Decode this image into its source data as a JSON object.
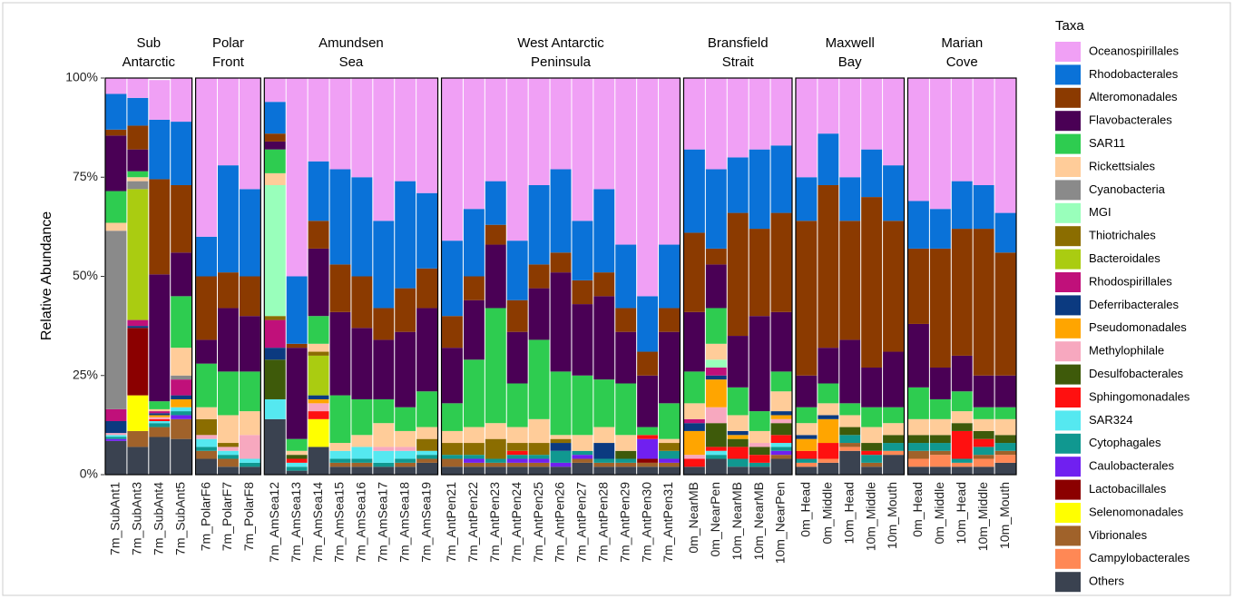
{
  "chart_data": {
    "type": "stacked-bar",
    "ylabel": "Relative Abundance",
    "ylim": [
      0,
      100
    ],
    "yticks": [
      {
        "value": 0,
        "label": "0%"
      },
      {
        "value": 25,
        "label": "25%"
      },
      {
        "value": 50,
        "label": "50%"
      },
      {
        "value": 75,
        "label": "75%"
      },
      {
        "value": 100,
        "label": "100%"
      }
    ],
    "legend_title": "Taxa",
    "groups": [
      {
        "label": [
          "Sub",
          "Antarctic"
        ],
        "categories": [
          "7m_SubAnt1",
          "7m_SubAnt3",
          "7m_SubAnt4",
          "7m_SubAnt5"
        ]
      },
      {
        "label": [
          "Polar",
          "Front"
        ],
        "categories": [
          "7m_PolarF6",
          "7m_PolarF7",
          "7m_PolarF8"
        ]
      },
      {
        "label": [
          "Amundsen",
          "Sea"
        ],
        "categories": [
          "7m_AmSea12",
          "7m_AmSea13",
          "7m_AmSea14",
          "7m_AmSea15",
          "7m_AmSea16",
          "7m_AmSea17",
          "7m_AmSea18",
          "7m_AmSea19"
        ]
      },
      {
        "label": [
          "West Antarctic",
          "Peninsula"
        ],
        "categories": [
          "7m_AntPen21",
          "7m_AntPen22",
          "7m_AntPen23",
          "7m_AntPen24",
          "7m_AntPen25",
          "7m_AntPen26",
          "7m_AntPen27",
          "7m_AntPen28",
          "7m_AntPen29",
          "7m_AntPen30",
          "7m_AntPen31"
        ]
      },
      {
        "label": [
          "Bransfield",
          "Strait"
        ],
        "categories": [
          "0m_NearMB",
          "0m_NearPen",
          "10m_NearMB",
          "10m_NearMB",
          "10m_NearPen"
        ]
      },
      {
        "label": [
          "Maxwell",
          "Bay"
        ],
        "categories": [
          "0m_Head",
          "0m_Middle",
          "10m_Head",
          "10m_Middle",
          "10m_Mouth"
        ]
      },
      {
        "label": [
          "Marian",
          "Cove"
        ],
        "categories": [
          "0m_Head",
          "0m_Middle",
          "10m_Head",
          "10m_Middle",
          "10m_Mouth"
        ]
      }
    ],
    "series": [
      {
        "name": "Oceanospirillales",
        "color": "#f0a0f5",
        "values": [
          4,
          5,
          10,
          11,
          40,
          22,
          28,
          6,
          50,
          21,
          23,
          25,
          36,
          26,
          29,
          41,
          33,
          26,
          41,
          27,
          23,
          36,
          28,
          42,
          55,
          42,
          18,
          23,
          20,
          18,
          17,
          25,
          14,
          25,
          18,
          22,
          31,
          33,
          26,
          27,
          34
        ]
      },
      {
        "name": "Rhodobacterales",
        "color": "#0a72d8",
        "values": [
          9,
          7,
          15,
          16,
          10,
          27,
          22,
          8,
          17,
          15,
          24,
          25,
          22,
          27,
          19,
          19,
          17,
          11,
          15,
          20,
          21,
          15,
          21,
          16,
          14,
          16,
          21,
          20,
          14,
          20,
          17,
          11,
          13,
          11,
          12,
          14,
          12,
          10,
          12,
          11,
          10
        ]
      },
      {
        "name": "Alteromonadales",
        "color": "#8b3a00",
        "values": [
          1.5,
          6,
          24,
          17,
          16,
          9,
          10,
          2,
          1,
          7,
          12,
          13,
          8,
          11,
          10,
          8,
          6,
          5,
          8,
          6,
          5,
          6,
          6,
          6,
          6,
          6,
          20,
          4,
          31,
          22,
          25,
          39,
          41,
          30,
          43,
          33,
          19,
          30,
          32,
          37,
          31
        ]
      },
      {
        "name": "Flavobacterales",
        "color": "#4a0055",
        "values": [
          14,
          5.5,
          32,
          11,
          6,
          16,
          14,
          2,
          23,
          17,
          21,
          18,
          15,
          19,
          21,
          14,
          15,
          16,
          13,
          13,
          25,
          18,
          21,
          13,
          13,
          18,
          15,
          11,
          13,
          24,
          15,
          8,
          9,
          16,
          10,
          14,
          16,
          8,
          9,
          8,
          8
        ]
      },
      {
        "name": "SAR11",
        "color": "#2ecc50",
        "values": [
          8,
          1.5,
          2,
          13,
          11,
          11,
          10,
          6,
          3,
          7,
          12,
          9,
          6,
          6,
          9,
          7,
          17,
          29,
          11,
          20,
          16,
          15,
          12,
          13,
          2,
          9,
          8,
          9,
          7,
          5,
          5,
          4,
          5,
          3,
          5,
          4,
          8,
          5,
          5,
          3,
          3
        ]
      },
      {
        "name": "Rickettsiales",
        "color": "#ffcc99",
        "values": [
          2,
          1,
          0.5,
          7,
          3,
          7,
          6,
          3,
          1,
          2,
          2,
          3,
          6,
          4,
          3,
          3,
          4,
          4,
          4,
          6,
          1,
          4,
          4,
          4,
          0,
          1,
          4,
          4,
          4,
          3,
          5,
          3,
          3,
          3,
          4,
          3,
          4,
          4,
          3,
          3,
          4
        ]
      },
      {
        "name": "Cyanobacteria",
        "color": "#8a8a8a",
        "values": [
          45,
          2,
          0,
          1,
          0,
          0,
          0,
          0,
          0,
          0,
          0,
          0,
          0,
          0,
          0,
          0,
          0,
          0,
          0,
          0,
          0,
          0,
          0,
          0,
          0,
          0,
          0,
          0,
          0,
          0,
          0,
          0,
          0,
          0,
          0,
          0,
          0,
          0,
          0,
          0,
          0
        ]
      },
      {
        "name": "MGI",
        "color": "#99ffbb",
        "values": [
          0,
          0,
          0,
          0,
          0,
          0,
          0,
          33,
          0,
          0,
          0,
          0,
          0,
          0,
          0,
          0,
          0,
          0,
          0,
          0,
          0,
          0,
          0,
          0,
          0,
          0,
          0,
          2,
          0,
          0,
          0,
          0,
          0,
          0,
          0,
          0,
          0,
          0,
          0,
          0,
          0
        ]
      },
      {
        "name": "Thiotrichales",
        "color": "#8b6d00",
        "values": [
          0,
          0,
          0,
          0,
          4,
          1,
          0,
          1,
          0,
          1,
          0,
          0,
          0,
          0,
          3,
          3,
          3,
          5,
          2,
          3,
          1,
          0,
          0,
          0,
          0,
          2,
          0,
          0,
          0,
          0,
          0,
          0,
          0,
          0,
          0,
          0,
          0,
          0,
          0,
          0,
          0
        ]
      },
      {
        "name": "Bacteroidales",
        "color": "#aacc11",
        "values": [
          0,
          33,
          0,
          0,
          0,
          0,
          0,
          0,
          0,
          10,
          0,
          0,
          0,
          0,
          0,
          0,
          0,
          0,
          0,
          0,
          0,
          0,
          0,
          0,
          0,
          0,
          0,
          0,
          0,
          0,
          0,
          0,
          0,
          0,
          0,
          0,
          0,
          0,
          0,
          0,
          0
        ]
      },
      {
        "name": "Rhodospirillales",
        "color": "#c0107a",
        "values": [
          3,
          1.5,
          0.5,
          4,
          0,
          0,
          0,
          7,
          0,
          0,
          0,
          0,
          0,
          0,
          0,
          0,
          0,
          0,
          0,
          0,
          0,
          0,
          0,
          0,
          0,
          0,
          1,
          2,
          0,
          0,
          0,
          0,
          0,
          0,
          0,
          0,
          0,
          0,
          0,
          0,
          0
        ]
      },
      {
        "name": "Deferribacterales",
        "color": "#0b3a80",
        "values": [
          3,
          0.5,
          0.5,
          1,
          0,
          0,
          0,
          3,
          0,
          1,
          0,
          0,
          0,
          0,
          0,
          0,
          0,
          0,
          0,
          0,
          2,
          0,
          4,
          0,
          0,
          0,
          2,
          1,
          1,
          0,
          1,
          1,
          1,
          0,
          0,
          0,
          0,
          0,
          0,
          0,
          0
        ]
      },
      {
        "name": "Pseudomonadales",
        "color": "#ffa500",
        "values": [
          0,
          0,
          0.5,
          2,
          0,
          0,
          0,
          0,
          0,
          1,
          0,
          0,
          0,
          0,
          0,
          0,
          0,
          0,
          0,
          0,
          0,
          0,
          0,
          0,
          0,
          0,
          6,
          7,
          1,
          0,
          1,
          3,
          6,
          0,
          0,
          0,
          0,
          0,
          0,
          0,
          0
        ]
      },
      {
        "name": "Methylophilale",
        "color": "#f7a8bf",
        "values": [
          0.5,
          0,
          0.5,
          0,
          1,
          1,
          6,
          0,
          0,
          2,
          0,
          0,
          1,
          1,
          0,
          0,
          0,
          0,
          0,
          0,
          0,
          0,
          0,
          0,
          0,
          0,
          1,
          4,
          0,
          1,
          1,
          0,
          0,
          0,
          0,
          0,
          0,
          0,
          0,
          0,
          0
        ]
      },
      {
        "name": "Desulfobacterales",
        "color": "#3e5a0a",
        "values": [
          0,
          0,
          0,
          0,
          0,
          0,
          0,
          10,
          1,
          0,
          0,
          0,
          0,
          0,
          0,
          0,
          0,
          0,
          0,
          0,
          0,
          0,
          0,
          2,
          0,
          0,
          0,
          6,
          2,
          2,
          3,
          0,
          0,
          2,
          2,
          2,
          2,
          2,
          2,
          2,
          2
        ]
      },
      {
        "name": "Sphingomonadales",
        "color": "#ff1010",
        "values": [
          0,
          0,
          0.5,
          0,
          0,
          0,
          0,
          0,
          1,
          2,
          0,
          0,
          0,
          0,
          0,
          0,
          0,
          0,
          1,
          0,
          0,
          0,
          0,
          0,
          1,
          0,
          2,
          1,
          3,
          2,
          2,
          2,
          4,
          0,
          1,
          0,
          0,
          0,
          7,
          2,
          0
        ]
      },
      {
        "name": "SAR324",
        "color": "#55e8f0",
        "values": [
          0.5,
          0,
          0.5,
          1,
          2,
          1,
          1,
          5,
          1,
          0,
          2,
          3,
          3,
          2,
          1,
          0,
          0,
          0,
          0,
          0,
          0,
          0,
          0,
          0,
          0,
          0,
          0,
          1,
          0,
          0,
          1,
          0,
          0,
          0,
          0,
          0,
          0,
          0,
          0,
          0,
          0
        ]
      },
      {
        "name": "Cytophagales",
        "color": "#109890",
        "values": [
          0.5,
          0,
          1,
          1,
          1,
          1,
          1,
          0,
          1,
          0,
          1,
          1,
          1,
          1,
          1,
          1,
          1,
          1,
          1,
          1,
          3,
          1,
          1,
          1,
          0,
          2,
          0,
          1,
          2,
          1,
          1,
          1,
          0,
          2,
          2,
          2,
          2,
          2,
          1,
          2,
          2
        ]
      },
      {
        "name": "Caulobacterales",
        "color": "#7020f0",
        "values": [
          0.5,
          0,
          0,
          1,
          0,
          0,
          0,
          0,
          0,
          0,
          0,
          0,
          0,
          0,
          0,
          0,
          1,
          0,
          1,
          1,
          1,
          1,
          0,
          0,
          5,
          1,
          0,
          0,
          0,
          0,
          1,
          0,
          0,
          0,
          0,
          0,
          0,
          0,
          0,
          0,
          0
        ]
      },
      {
        "name": "Lactobacillales",
        "color": "#8b0000",
        "values": [
          0,
          17,
          0,
          0,
          0,
          0,
          0,
          0,
          0,
          0,
          0,
          0,
          0,
          0,
          0,
          0,
          0,
          0,
          0,
          0,
          0,
          0,
          0,
          0,
          1,
          0,
          0,
          0,
          0,
          0,
          0,
          0,
          0,
          0,
          0,
          0,
          0,
          0,
          0,
          0,
          0
        ]
      },
      {
        "name": "Selenomonadales",
        "color": "#ffff00",
        "values": [
          0,
          9,
          0,
          0,
          0,
          0,
          0,
          0,
          0,
          7,
          0,
          0,
          0,
          0,
          0,
          0,
          0,
          0,
          0,
          0,
          0,
          0,
          0,
          0,
          0,
          0,
          0,
          0,
          0,
          0,
          0,
          0,
          0,
          0,
          0,
          0,
          0,
          0,
          0,
          0,
          0
        ]
      },
      {
        "name": "Vibrionales",
        "color": "#a0622a",
        "values": [
          0,
          4,
          2.5,
          5,
          2,
          2,
          0,
          0,
          0,
          0,
          1,
          1,
          0,
          1,
          1,
          2,
          1,
          1,
          1,
          1,
          0,
          1,
          1,
          1,
          1,
          1,
          0,
          0,
          0,
          0,
          1,
          0,
          0,
          1,
          1,
          0,
          2,
          1,
          0,
          1,
          1
        ]
      },
      {
        "name": "Campylobacterales",
        "color": "#ff8855",
        "values": [
          0,
          0,
          0,
          0,
          0,
          0,
          0,
          0,
          0,
          0,
          0,
          0,
          0,
          0,
          0,
          0,
          0,
          0,
          0,
          0,
          0,
          0,
          0,
          0,
          0,
          0,
          0,
          0,
          0,
          0,
          0,
          1,
          1,
          1,
          0,
          1,
          2,
          3,
          1,
          2,
          2
        ]
      },
      {
        "name": "Others",
        "color": "#3a4250",
        "values": [
          8.5,
          7,
          9.5,
          9,
          4,
          2,
          2,
          14,
          1,
          7,
          2,
          2,
          2,
          2,
          3,
          2,
          2,
          2,
          2,
          2,
          2,
          3,
          2,
          2,
          2,
          2,
          2,
          4,
          2,
          2,
          4,
          2,
          3,
          6,
          2,
          5,
          2,
          2,
          2,
          2,
          3
        ]
      }
    ]
  }
}
